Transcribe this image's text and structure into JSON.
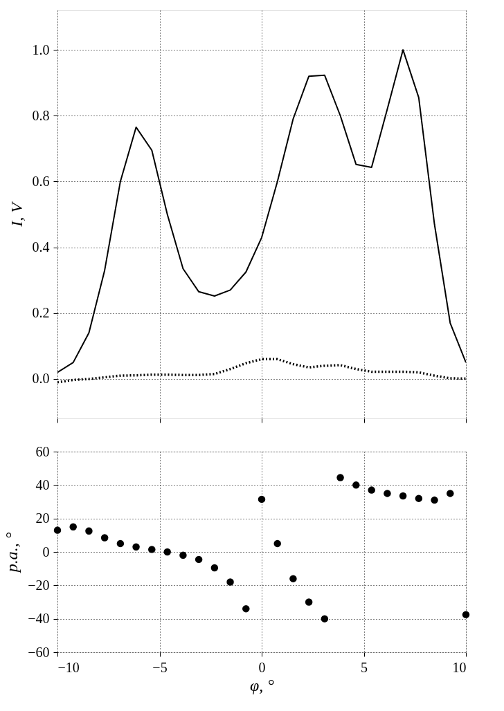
{
  "chart_data": [
    {
      "type": "line",
      "ylabel": "I, V",
      "xlim": [
        -10,
        10
      ],
      "xticks": [
        -10,
        -5,
        0,
        5,
        10
      ],
      "ylim": [
        -0.12,
        1.12
      ],
      "yticks": [
        {
          "value": 0,
          "label": "0.0"
        },
        {
          "value": 0.2,
          "label": "0.2"
        },
        {
          "value": 0.4,
          "label": "0.4"
        },
        {
          "value": 0.6,
          "label": "0.6"
        },
        {
          "value": 0.8,
          "label": "0.8"
        },
        {
          "value": 1,
          "label": "1.0"
        }
      ],
      "grid": true,
      "tick_labels": "y",
      "x": [
        -10,
        -9.23,
        -8.46,
        -7.69,
        -6.92,
        -6.15,
        -5.38,
        -4.62,
        -3.85,
        -3.08,
        -2.31,
        -1.54,
        -0.77,
        0,
        0.77,
        1.54,
        2.31,
        3.08,
        3.85,
        4.62,
        5.38,
        6.15,
        6.92,
        7.69,
        8.46,
        9.23,
        10
      ],
      "series": [
        {
          "color": "#000000",
          "line_style": "solid",
          "values": [
            0.02,
            0.05,
            0.14,
            0.33,
            0.6,
            0.765,
            0.695,
            0.5,
            0.335,
            0.265,
            0.252,
            0.27,
            0.325,
            0.43,
            0.6,
            0.79,
            0.92,
            0.923,
            0.8,
            0.652,
            0.643,
            0.82,
            1.0,
            0.855,
            0.47,
            0.17,
            0.05
          ]
        },
        {
          "color": "#000000",
          "line_style": "dotted",
          "values": [
            -0.01,
            -0.003,
            0.0,
            0.005,
            0.01,
            0.011,
            0.013,
            0.013,
            0.012,
            0.012,
            0.015,
            0.03,
            0.048,
            0.06,
            0.06,
            0.045,
            0.035,
            0.04,
            0.042,
            0.03,
            0.022,
            0.022,
            0.022,
            0.02,
            0.01,
            0.002,
            0.001
          ]
        }
      ]
    },
    {
      "type": "scatter",
      "xlabel": "φ, °",
      "ylabel": "p.a., °",
      "xlim": [
        -10,
        10
      ],
      "xticks": [
        -10,
        -5,
        0,
        5,
        10
      ],
      "ylim": [
        -60,
        60
      ],
      "yticks": [
        -60,
        -40,
        -20,
        0,
        20,
        40,
        60
      ],
      "grid": true,
      "marker": "circle",
      "x": [
        -10,
        -9.23,
        -8.46,
        -7.69,
        -6.92,
        -6.15,
        -5.38,
        -4.62,
        -3.85,
        -3.08,
        -2.31,
        -1.54,
        -0.77,
        0,
        0.77,
        1.54,
        2.31,
        3.08,
        3.85,
        4.62,
        5.38,
        6.15,
        6.92,
        7.69,
        8.46,
        9.23,
        10
      ],
      "series": [
        {
          "color": "#000000",
          "values": [
            13,
            15,
            12.5,
            8.5,
            5,
            3,
            1.5,
            0,
            -2,
            -4.5,
            -9.5,
            -18,
            -34,
            31.5,
            5,
            -16,
            -30,
            -40,
            44.5,
            40,
            37,
            35,
            33.5,
            32,
            31,
            35,
            -37.5
          ]
        }
      ]
    }
  ]
}
